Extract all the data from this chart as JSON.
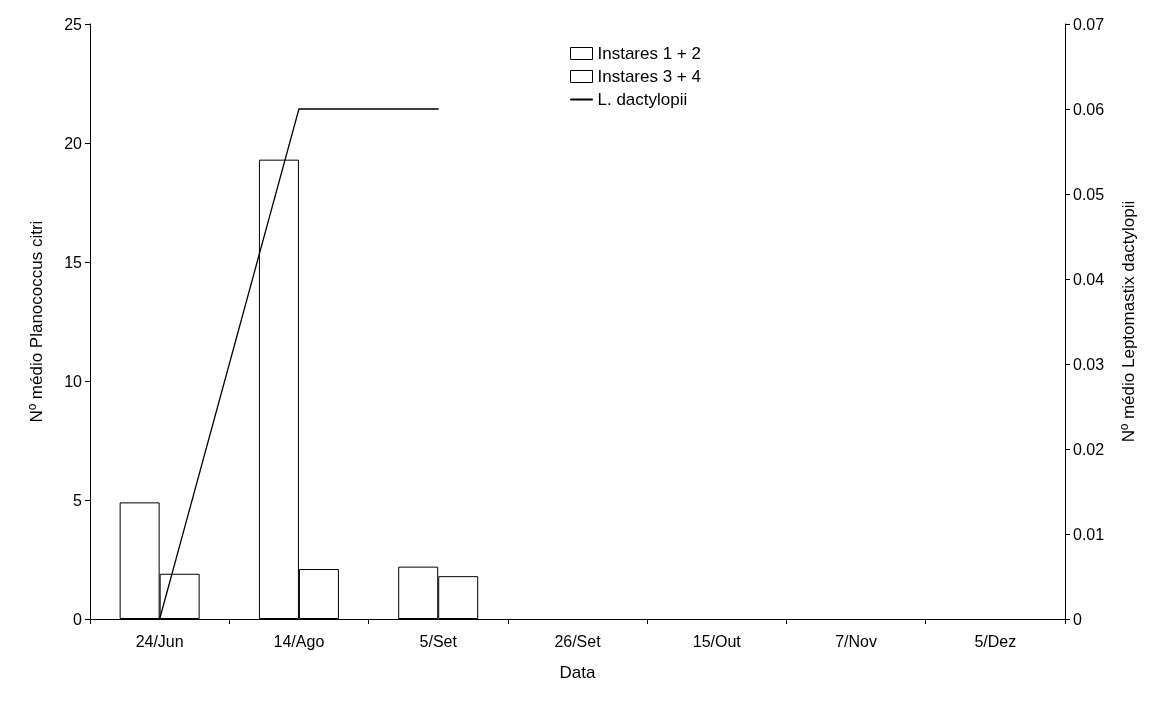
{
  "chart_data": {
    "type": "bar",
    "xlabel": "Data",
    "ylabel": "Nº médio Planococcus citri",
    "y2label": "Nº médio Leptomastix dactylopii",
    "categories": [
      "24/Jun",
      "14/Ago",
      "5/Set",
      "26/Set",
      "15/Out",
      "7/Nov",
      "5/Dez"
    ],
    "series": [
      {
        "name": "Instares 1 + 2",
        "color": "#ffffff",
        "values": [
          4.9,
          19.3,
          2.2,
          null,
          null,
          null,
          null
        ]
      },
      {
        "name": "Instares 3 + 4",
        "color": "#ffffff",
        "values": [
          1.9,
          2.1,
          1.8,
          null,
          null,
          null,
          null
        ]
      },
      {
        "name": "L. dactylopii",
        "type": "line",
        "axis": "y2",
        "color": "#000000",
        "values": [
          0,
          0.06,
          0.06,
          null,
          null,
          null,
          null
        ]
      }
    ],
    "ylim": [
      0,
      25
    ],
    "yticks": [
      0,
      5,
      10,
      15,
      20,
      25
    ],
    "y2lim": [
      0,
      0.07
    ],
    "y2ticks": [
      0,
      0.01,
      0.02,
      0.03,
      0.04,
      0.05,
      0.06,
      0.07
    ],
    "grid": false,
    "legend": "top",
    "marker": "none",
    "line_style": "solid"
  }
}
